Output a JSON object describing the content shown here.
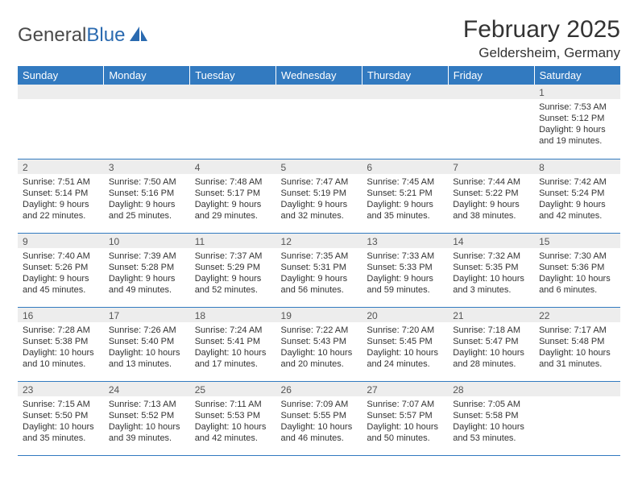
{
  "logo": {
    "text_general": "General",
    "text_blue": "Blue"
  },
  "title": "February 2025",
  "location": "Geldersheim, Germany",
  "colors": {
    "header_bg": "#327ac0",
    "header_text": "#ffffff",
    "daynum_bg": "#ededed",
    "row_border": "#327ac0",
    "body_text": "#333333",
    "logo_gray": "#4a4a4a",
    "logo_blue": "#2a6ab0"
  },
  "weekdays": [
    "Sunday",
    "Monday",
    "Tuesday",
    "Wednesday",
    "Thursday",
    "Friday",
    "Saturday"
  ],
  "weeks": [
    [
      null,
      null,
      null,
      null,
      null,
      null,
      {
        "n": "1",
        "sunrise": "Sunrise: 7:53 AM",
        "sunset": "Sunset: 5:12 PM",
        "daylight": "Daylight: 9 hours and 19 minutes."
      }
    ],
    [
      {
        "n": "2",
        "sunrise": "Sunrise: 7:51 AM",
        "sunset": "Sunset: 5:14 PM",
        "daylight": "Daylight: 9 hours and 22 minutes."
      },
      {
        "n": "3",
        "sunrise": "Sunrise: 7:50 AM",
        "sunset": "Sunset: 5:16 PM",
        "daylight": "Daylight: 9 hours and 25 minutes."
      },
      {
        "n": "4",
        "sunrise": "Sunrise: 7:48 AM",
        "sunset": "Sunset: 5:17 PM",
        "daylight": "Daylight: 9 hours and 29 minutes."
      },
      {
        "n": "5",
        "sunrise": "Sunrise: 7:47 AM",
        "sunset": "Sunset: 5:19 PM",
        "daylight": "Daylight: 9 hours and 32 minutes."
      },
      {
        "n": "6",
        "sunrise": "Sunrise: 7:45 AM",
        "sunset": "Sunset: 5:21 PM",
        "daylight": "Daylight: 9 hours and 35 minutes."
      },
      {
        "n": "7",
        "sunrise": "Sunrise: 7:44 AM",
        "sunset": "Sunset: 5:22 PM",
        "daylight": "Daylight: 9 hours and 38 minutes."
      },
      {
        "n": "8",
        "sunrise": "Sunrise: 7:42 AM",
        "sunset": "Sunset: 5:24 PM",
        "daylight": "Daylight: 9 hours and 42 minutes."
      }
    ],
    [
      {
        "n": "9",
        "sunrise": "Sunrise: 7:40 AM",
        "sunset": "Sunset: 5:26 PM",
        "daylight": "Daylight: 9 hours and 45 minutes."
      },
      {
        "n": "10",
        "sunrise": "Sunrise: 7:39 AM",
        "sunset": "Sunset: 5:28 PM",
        "daylight": "Daylight: 9 hours and 49 minutes."
      },
      {
        "n": "11",
        "sunrise": "Sunrise: 7:37 AM",
        "sunset": "Sunset: 5:29 PM",
        "daylight": "Daylight: 9 hours and 52 minutes."
      },
      {
        "n": "12",
        "sunrise": "Sunrise: 7:35 AM",
        "sunset": "Sunset: 5:31 PM",
        "daylight": "Daylight: 9 hours and 56 minutes."
      },
      {
        "n": "13",
        "sunrise": "Sunrise: 7:33 AM",
        "sunset": "Sunset: 5:33 PM",
        "daylight": "Daylight: 9 hours and 59 minutes."
      },
      {
        "n": "14",
        "sunrise": "Sunrise: 7:32 AM",
        "sunset": "Sunset: 5:35 PM",
        "daylight": "Daylight: 10 hours and 3 minutes."
      },
      {
        "n": "15",
        "sunrise": "Sunrise: 7:30 AM",
        "sunset": "Sunset: 5:36 PM",
        "daylight": "Daylight: 10 hours and 6 minutes."
      }
    ],
    [
      {
        "n": "16",
        "sunrise": "Sunrise: 7:28 AM",
        "sunset": "Sunset: 5:38 PM",
        "daylight": "Daylight: 10 hours and 10 minutes."
      },
      {
        "n": "17",
        "sunrise": "Sunrise: 7:26 AM",
        "sunset": "Sunset: 5:40 PM",
        "daylight": "Daylight: 10 hours and 13 minutes."
      },
      {
        "n": "18",
        "sunrise": "Sunrise: 7:24 AM",
        "sunset": "Sunset: 5:41 PM",
        "daylight": "Daylight: 10 hours and 17 minutes."
      },
      {
        "n": "19",
        "sunrise": "Sunrise: 7:22 AM",
        "sunset": "Sunset: 5:43 PM",
        "daylight": "Daylight: 10 hours and 20 minutes."
      },
      {
        "n": "20",
        "sunrise": "Sunrise: 7:20 AM",
        "sunset": "Sunset: 5:45 PM",
        "daylight": "Daylight: 10 hours and 24 minutes."
      },
      {
        "n": "21",
        "sunrise": "Sunrise: 7:18 AM",
        "sunset": "Sunset: 5:47 PM",
        "daylight": "Daylight: 10 hours and 28 minutes."
      },
      {
        "n": "22",
        "sunrise": "Sunrise: 7:17 AM",
        "sunset": "Sunset: 5:48 PM",
        "daylight": "Daylight: 10 hours and 31 minutes."
      }
    ],
    [
      {
        "n": "23",
        "sunrise": "Sunrise: 7:15 AM",
        "sunset": "Sunset: 5:50 PM",
        "daylight": "Daylight: 10 hours and 35 minutes."
      },
      {
        "n": "24",
        "sunrise": "Sunrise: 7:13 AM",
        "sunset": "Sunset: 5:52 PM",
        "daylight": "Daylight: 10 hours and 39 minutes."
      },
      {
        "n": "25",
        "sunrise": "Sunrise: 7:11 AM",
        "sunset": "Sunset: 5:53 PM",
        "daylight": "Daylight: 10 hours and 42 minutes."
      },
      {
        "n": "26",
        "sunrise": "Sunrise: 7:09 AM",
        "sunset": "Sunset: 5:55 PM",
        "daylight": "Daylight: 10 hours and 46 minutes."
      },
      {
        "n": "27",
        "sunrise": "Sunrise: 7:07 AM",
        "sunset": "Sunset: 5:57 PM",
        "daylight": "Daylight: 10 hours and 50 minutes."
      },
      {
        "n": "28",
        "sunrise": "Sunrise: 7:05 AM",
        "sunset": "Sunset: 5:58 PM",
        "daylight": "Daylight: 10 hours and 53 minutes."
      },
      null
    ]
  ]
}
